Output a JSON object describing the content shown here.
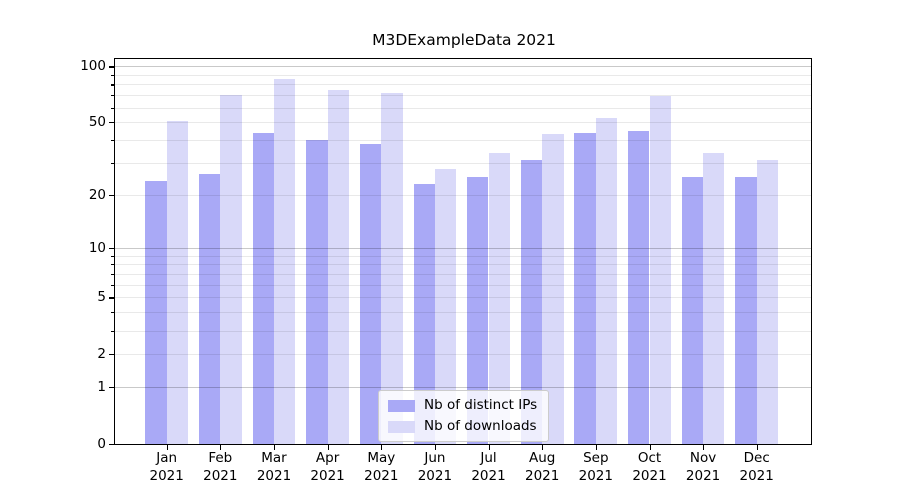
{
  "title": "M3DExampleData 2021",
  "chart_data": {
    "type": "bar",
    "title": "M3DExampleData 2021",
    "categories": [
      "Jan",
      "Feb",
      "Mar",
      "Apr",
      "May",
      "Jun",
      "Jul",
      "Aug",
      "Sep",
      "Oct",
      "Nov",
      "Dec"
    ],
    "x_tick_second_line": "2021",
    "series": [
      {
        "name": "Nb of distinct IPs",
        "color": "#a9a9f6",
        "values": [
          24,
          26,
          44,
          40,
          38,
          23,
          25,
          31,
          44,
          45,
          25,
          25
        ]
      },
      {
        "name": "Nb of downloads",
        "color": "#d9d9f9",
        "values": [
          51,
          70,
          86,
          75,
          72,
          28,
          34,
          43,
          53,
          69,
          34,
          31
        ]
      }
    ],
    "yscale": "log1p",
    "ylim": [
      0,
      111
    ],
    "y_axis": {
      "labeled_ticks": [
        0,
        1,
        2,
        5,
        10,
        20,
        50,
        100
      ],
      "major_grid": [
        1,
        10,
        100
      ],
      "minor_grid": [
        2,
        3,
        4,
        5,
        6,
        7,
        8,
        9,
        20,
        30,
        40,
        50,
        60,
        70,
        80,
        90
      ]
    },
    "grid": "both",
    "legend_position": "lower center"
  },
  "colors": {
    "bar_distinct_ips": "#a9a9f6",
    "bar_downloads": "#d9d9f9",
    "spine": "#000000",
    "grid_major": "#c9c9c9",
    "grid_minor": "#e9e9e9",
    "background": "#ffffff",
    "text": "#000000"
  }
}
